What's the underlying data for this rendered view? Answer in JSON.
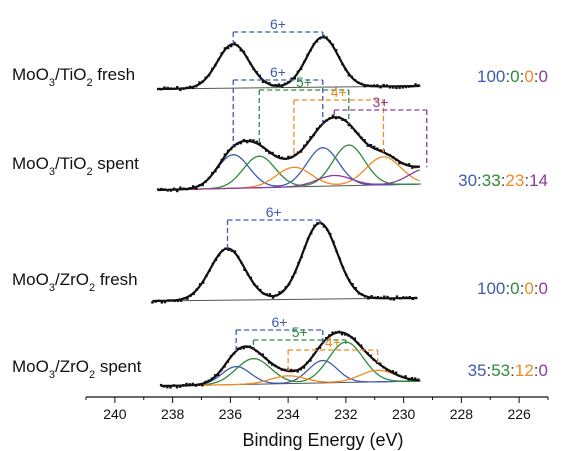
{
  "chart_data": {
    "type": "line",
    "xlabel": "Binding Energy (eV)",
    "xlim": [
      241,
      225
    ],
    "x_ticks": [
      240,
      238,
      236,
      234,
      232,
      230,
      228,
      226
    ],
    "y_axis": "none (stacked spectra)",
    "colors": {
      "envelope": "#111111",
      "data_points": "#111111",
      "Mo6+": "#3d5bb3",
      "Mo5+": "#2e8b3a",
      "Mo4+": "#f08a24",
      "Mo3+": "#8e3a9e"
    },
    "panels": [
      {
        "sample_label": [
          "MoO",
          "3",
          "/TiO",
          "2",
          " fresh"
        ],
        "ratio": [
          "100",
          ":",
          "0",
          ":",
          "0",
          ":",
          "0"
        ],
        "brackets": [
          {
            "label": "6+",
            "color": "#3d5bb3",
            "x1": 235.9,
            "x2": 232.8
          }
        ],
        "components": [
          {
            "state": "6+",
            "centers": [
              235.9,
              232.8
            ],
            "heights": [
              0.88,
              1.0
            ],
            "sigma": 0.55
          }
        ]
      },
      {
        "sample_label": [
          "MoO",
          "3",
          "/TiO",
          "2",
          " spent"
        ],
        "ratio": [
          "30",
          ":",
          "33",
          ":",
          "23",
          ":",
          "14"
        ],
        "brackets": [
          {
            "label": "6+",
            "color": "#3d5bb3",
            "x1": 235.9,
            "x2": 232.8
          },
          {
            "label": "5+",
            "color": "#2e8b3a",
            "x1": 235.0,
            "x2": 231.9
          },
          {
            "label": "4+",
            "color": "#f08a24",
            "x1": 233.8,
            "x2": 230.7
          },
          {
            "label": "3+",
            "color": "#8e3a9e",
            "x1": 232.4,
            "x2": 229.2
          }
        ],
        "components": [
          {
            "state": "6+",
            "centers": [
              235.9,
              232.8
            ],
            "heights": [
              0.48,
              0.55
            ],
            "sigma": 0.55
          },
          {
            "state": "5+",
            "centers": [
              235.0,
              231.9
            ],
            "heights": [
              0.45,
              0.58
            ],
            "sigma": 0.55
          },
          {
            "state": "4+",
            "centers": [
              233.8,
              230.7
            ],
            "heights": [
              0.28,
              0.4
            ],
            "sigma": 0.6
          },
          {
            "state": "3+",
            "centers": [
              232.4,
              229.2
            ],
            "heights": [
              0.15,
              0.22
            ],
            "sigma": 0.6
          }
        ]
      },
      {
        "sample_label": [
          "MoO",
          "3",
          "/ZrO",
          "2",
          " fresh"
        ],
        "ratio": [
          "100",
          ":",
          "0",
          ":",
          "0",
          ":",
          "0"
        ],
        "brackets": [
          {
            "label": "6+",
            "color": "#3d5bb3",
            "x1": 236.1,
            "x2": 232.9
          }
        ],
        "components": [
          {
            "state": "6+",
            "centers": [
              236.1,
              232.9
            ],
            "heights": [
              0.68,
              1.0
            ],
            "sigma": 0.6
          }
        ]
      },
      {
        "sample_label": [
          "MoO",
          "3",
          "/ZrO",
          "2",
          " spent"
        ],
        "ratio": [
          "35",
          ":",
          "53",
          ":",
          "12",
          ":",
          "0"
        ],
        "brackets": [
          {
            "label": "6+",
            "color": "#3d5bb3",
            "x1": 235.8,
            "x2": 232.8
          },
          {
            "label": "5+",
            "color": "#2e8b3a",
            "x1": 235.2,
            "x2": 232.0
          },
          {
            "label": "4+",
            "color": "#f08a24",
            "x1": 234.0,
            "x2": 230.9
          }
        ],
        "components": [
          {
            "state": "6+",
            "centers": [
              235.8,
              232.8
            ],
            "heights": [
              0.28,
              0.35
            ],
            "sigma": 0.5
          },
          {
            "state": "5+",
            "centers": [
              235.2,
              232.0
            ],
            "heights": [
              0.4,
              0.63
            ],
            "sigma": 0.6
          },
          {
            "state": "4+",
            "centers": [
              234.0,
              230.9
            ],
            "heights": [
              0.12,
              0.18
            ],
            "sigma": 0.6
          }
        ]
      }
    ]
  }
}
